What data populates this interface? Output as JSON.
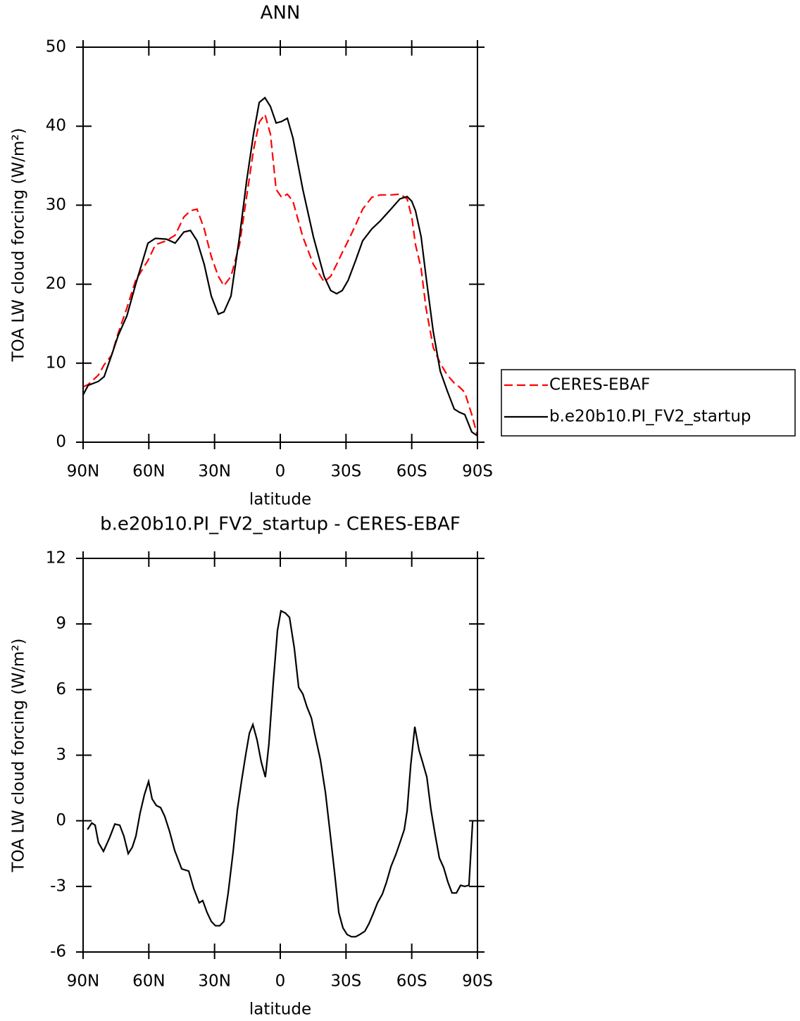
{
  "chart_data": [
    {
      "type": "line",
      "title": "ANN",
      "xlabel": "latitude",
      "ylabel": "TOA LW cloud forcing (W/m²)",
      "xlim": [
        90,
        -90
      ],
      "ylim": [
        0,
        50
      ],
      "xticks": [
        {
          "value": 90,
          "label": "90N"
        },
        {
          "value": 60,
          "label": "60N"
        },
        {
          "value": 30,
          "label": "30N"
        },
        0,
        {
          "value": -30,
          "label": "30S"
        },
        {
          "value": -60,
          "label": "60S"
        },
        {
          "value": -90,
          "label": "90S"
        }
      ],
      "yticks": [
        0,
        10,
        20,
        30,
        40,
        50
      ],
      "legend": "right",
      "x": [
        90,
        87.7,
        83,
        80.4,
        77,
        74,
        70,
        66,
        60.4,
        57,
        52,
        48,
        44,
        41,
        38,
        34.7,
        31.5,
        28.3,
        25.7,
        22.5,
        18.6,
        15.4,
        12.2,
        9.6,
        7,
        4.5,
        1.9,
        -0.6,
        -3.2,
        -5.8,
        -10.3,
        -15.1,
        -20,
        -23,
        -25.7,
        -28.3,
        -31,
        -34.4,
        -37.6,
        -41.8,
        -45.6,
        -50.5,
        -54.6,
        -57.9,
        -60,
        -61.7,
        -64.3,
        -66.5,
        -69.8,
        -73,
        -76.2,
        -79.4,
        -81.7,
        -84.2,
        -87.4,
        -90
      ],
      "series": [
        {
          "name": "CERES-EBAF",
          "color": "#ff0000",
          "linestyle": "dashed",
          "values": [
            7.0,
            7.3,
            8.5,
            9.8,
            11,
            13.8,
            17,
            20.5,
            23,
            25,
            25.5,
            26.2,
            28.5,
            29.3,
            29.5,
            27,
            23.5,
            21,
            19.8,
            21,
            25,
            31,
            37,
            40.5,
            41.5,
            39,
            32,
            31,
            31.4,
            30.5,
            26,
            22.5,
            20.3,
            21,
            22.5,
            24,
            25.5,
            27.5,
            29.5,
            31,
            31.3,
            31.3,
            31.4,
            30.8,
            28.5,
            25,
            22,
            17,
            12,
            10,
            8.5,
            7.5,
            7,
            6.3,
            3.5,
            0.8
          ]
        },
        {
          "name": "b.e20b10.PI_FV2_startup",
          "color": "#000000",
          "linestyle": "solid",
          "values": [
            6,
            7.2,
            7.7,
            8.3,
            11,
            13.5,
            16,
            20,
            25.2,
            25.8,
            25.7,
            25.2,
            26.6,
            26.8,
            25.5,
            22.5,
            18.5,
            16.2,
            16.5,
            18.5,
            26,
            33,
            39,
            43,
            43.6,
            42.5,
            40.4,
            40.6,
            41,
            38.5,
            32,
            26,
            21,
            19.2,
            18.8,
            19.2,
            20.5,
            23,
            25.5,
            27,
            28,
            29.5,
            30.8,
            31.1,
            30.5,
            29.3,
            26,
            21,
            14,
            9,
            6.5,
            4.2,
            3.8,
            3.5,
            1.3,
            0.8
          ]
        }
      ]
    },
    {
      "type": "line",
      "title": "b.e20b10.PI_FV2_startup - CERES-EBAF",
      "xlabel": "latitude",
      "ylabel": "TOA LW cloud forcing (W/m²)",
      "xlim": [
        90,
        -90
      ],
      "ylim": [
        -6,
        12
      ],
      "xticks": [
        {
          "value": 90,
          "label": "90N"
        },
        {
          "value": 60,
          "label": "60N"
        },
        {
          "value": 30,
          "label": "30N"
        },
        0,
        {
          "value": -30,
          "label": "30S"
        },
        {
          "value": -60,
          "label": "60S"
        },
        {
          "value": -90,
          "label": "90S"
        }
      ],
      "yticks": [
        -6,
        -3,
        0,
        3,
        6,
        9,
        12
      ],
      "x": [
        88,
        86,
        84.5,
        83,
        80.7,
        78,
        75.5,
        73.3,
        71.4,
        69.4,
        67.5,
        65.9,
        64,
        62,
        60.1,
        58.5,
        56.6,
        54.6,
        52.7,
        50.5,
        48.2,
        45,
        41.8,
        39.5,
        37,
        35.4,
        33.4,
        31.5,
        29.6,
        27.6,
        25.7,
        23.8,
        21.5,
        19.6,
        17.7,
        15.8,
        14.1,
        12.5,
        10.6,
        8.7,
        6.8,
        5.2,
        3.2,
        1.3,
        -0.3,
        -2.3,
        -4.2,
        -6.4,
        -8.4,
        -10.3,
        -12.2,
        -14.2,
        -16.1,
        -18.3,
        -20.6,
        -22.8,
        -24.8,
        -26.7,
        -28.6,
        -30.5,
        -32.5,
        -34.4,
        -36.3,
        -38.6,
        -40.5,
        -42.4,
        -44.4,
        -46.6,
        -48.5,
        -50.5,
        -52.7,
        -54.6,
        -56.6,
        -57.9,
        -59.5,
        -61.4,
        -63.4,
        -64.9,
        -66.9,
        -68.8,
        -70.7,
        -72.6,
        -74.6,
        -76.5,
        -78.4,
        -80.4,
        -82.3,
        -84.2,
        -86.1,
        -87.8
      ],
      "series": [
        {
          "color": "#000000",
          "linestyle": "solid",
          "values": [
            -0.4,
            -0.1,
            -0.2,
            -1.0,
            -1.4,
            -0.8,
            -0.15,
            -0.2,
            -0.7,
            -1.5,
            -1.2,
            -0.7,
            0.35,
            1.2,
            1.8,
            1.0,
            0.7,
            0.6,
            0.2,
            -0.5,
            -1.35,
            -2.2,
            -2.3,
            -3.1,
            -3.75,
            -3.65,
            -4.2,
            -4.6,
            -4.8,
            -4.8,
            -4.6,
            -3.3,
            -1.4,
            0.5,
            1.8,
            3.0,
            4.0,
            4.4,
            3.7,
            2.7,
            2.0,
            3.5,
            6.3,
            8.7,
            9.6,
            9.5,
            9.3,
            7.9,
            6.1,
            5.8,
            5.2,
            4.7,
            3.8,
            2.8,
            1.3,
            -0.6,
            -2.4,
            -4.2,
            -4.9,
            -5.2,
            -5.3,
            -5.3,
            -5.2,
            -5.05,
            -4.7,
            -4.25,
            -3.75,
            -3.35,
            -2.8,
            -2.1,
            -1.55,
            -1.0,
            -0.4,
            0.45,
            2.5,
            4.3,
            3.2,
            2.7,
            2.0,
            0.5,
            -0.65,
            -1.7,
            -2.15,
            -2.8,
            -3.3,
            -3.3,
            -2.95,
            -3.0,
            -2.95,
            0.0
          ]
        }
      ]
    }
  ]
}
